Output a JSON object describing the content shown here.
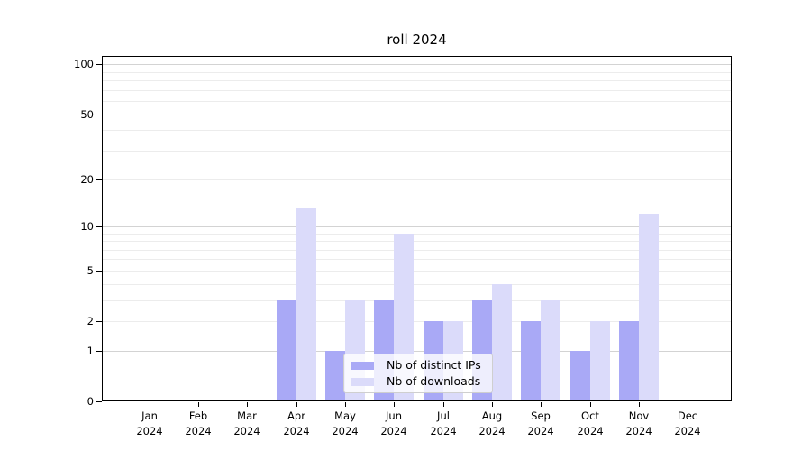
{
  "title": "roll 2024",
  "chart_data": {
    "type": "bar",
    "title": "roll 2024",
    "categories": [
      "Jan 2024",
      "Feb 2024",
      "Mar 2024",
      "Apr 2024",
      "May 2024",
      "Jun 2024",
      "Jul 2024",
      "Aug 2024",
      "Sep 2024",
      "Oct 2024",
      "Nov 2024",
      "Dec 2024"
    ],
    "x_tick_months": [
      "Jan",
      "Feb",
      "Mar",
      "Apr",
      "May",
      "Jun",
      "Jul",
      "Aug",
      "Sep",
      "Oct",
      "Nov",
      "Dec"
    ],
    "x_tick_year": "2024",
    "series": [
      {
        "name": "Nb of distinct IPs",
        "color": "#a9a9f6",
        "values": [
          0,
          0,
          0,
          3,
          1,
          3,
          2,
          3,
          2,
          1,
          2,
          0
        ]
      },
      {
        "name": "Nb of downloads",
        "color": "#dbdbfa",
        "values": [
          0,
          0,
          0,
          13,
          3,
          9,
          2,
          4,
          3,
          2,
          12,
          0
        ]
      }
    ],
    "y_axis": {
      "scale": "log10(1+v)",
      "tick_values": [
        0,
        1,
        2,
        5,
        10,
        20,
        50,
        100
      ],
      "tick_labels": [
        "0",
        "1",
        "2",
        "5",
        "10",
        "20",
        "50",
        "100"
      ],
      "major_gridlines": [
        1,
        10,
        100
      ],
      "minor_gridlines": [
        2,
        3,
        4,
        5,
        6,
        7,
        8,
        9,
        20,
        30,
        40,
        50,
        60,
        70,
        80,
        90
      ],
      "ylim": [
        0,
        113
      ]
    },
    "legend": {
      "position": "lower center",
      "entries": [
        "Nb of distinct IPs",
        "Nb of downloads"
      ]
    },
    "grid": true
  },
  "colors": {
    "background": "#ffffff",
    "axis": "#000000",
    "major_grid": "#d3d3d3",
    "minor_grid": "#ececec",
    "bar_distinct_ips": "#a9a9f6",
    "bar_downloads": "#dbdbfa"
  }
}
